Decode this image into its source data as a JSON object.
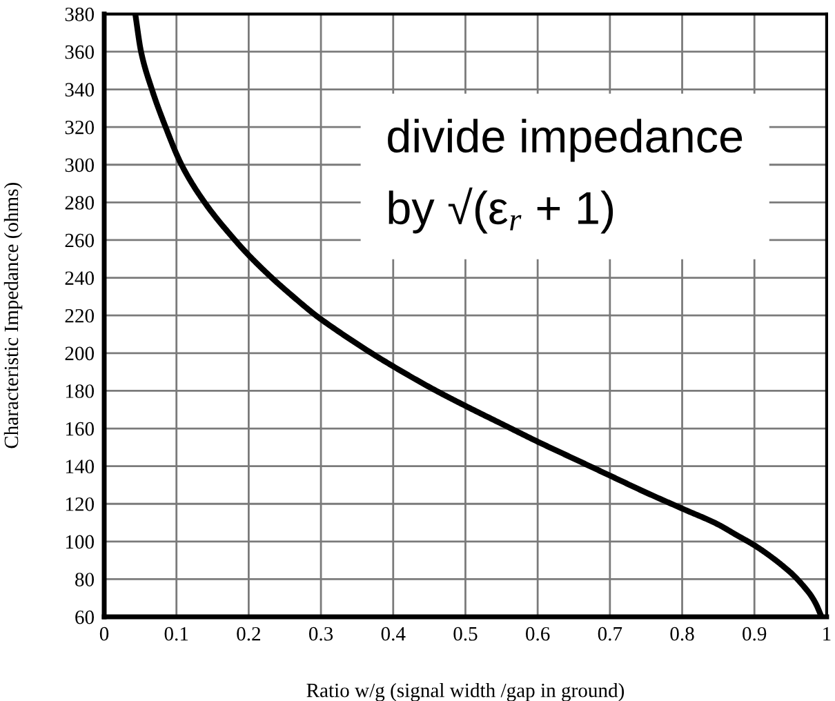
{
  "chart_data": {
    "type": "line",
    "xlabel": "Ratio w/g (signal width /gap in ground)",
    "ylabel": "Characteristic Impedance (ohms)",
    "annotations": [
      "divide impedance\nby √(ε$_{r}$ + 1)"
    ],
    "x": [
      0.043,
      0.051,
      0.066,
      0.085,
      0.107,
      0.139,
      0.181,
      0.2,
      0.232,
      0.26,
      0.293,
      0.3,
      0.37,
      0.4,
      0.45,
      0.5,
      0.55,
      0.6,
      0.65,
      0.7,
      0.75,
      0.8,
      0.85,
      0.875,
      0.9,
      0.928,
      0.941,
      0.953,
      0.972,
      0.978,
      0.985,
      0.993
    ],
    "series": [
      {
        "color": "#000000",
        "values": [
          380,
          360,
          340,
          320,
          300,
          280,
          260,
          252,
          240,
          230.5,
          220,
          218,
          200,
          193,
          182,
          172,
          162.5,
          153,
          144,
          135,
          126,
          117.5,
          109,
          103.5,
          98,
          90.5,
          86.5,
          82.5,
          74.5,
          71.5,
          67,
          60
        ]
      }
    ],
    "xlim": [
      0,
      1
    ],
    "ylim": [
      60,
      380
    ],
    "xticks": [
      0,
      0.1,
      0.2,
      0.3,
      0.4,
      0.5,
      0.6,
      0.7,
      0.8,
      0.9,
      1
    ],
    "yticks": [
      60,
      80,
      100,
      120,
      140,
      160,
      180,
      200,
      220,
      240,
      260,
      280,
      300,
      320,
      340,
      360,
      380
    ],
    "grid": true,
    "line_style": "solid"
  }
}
